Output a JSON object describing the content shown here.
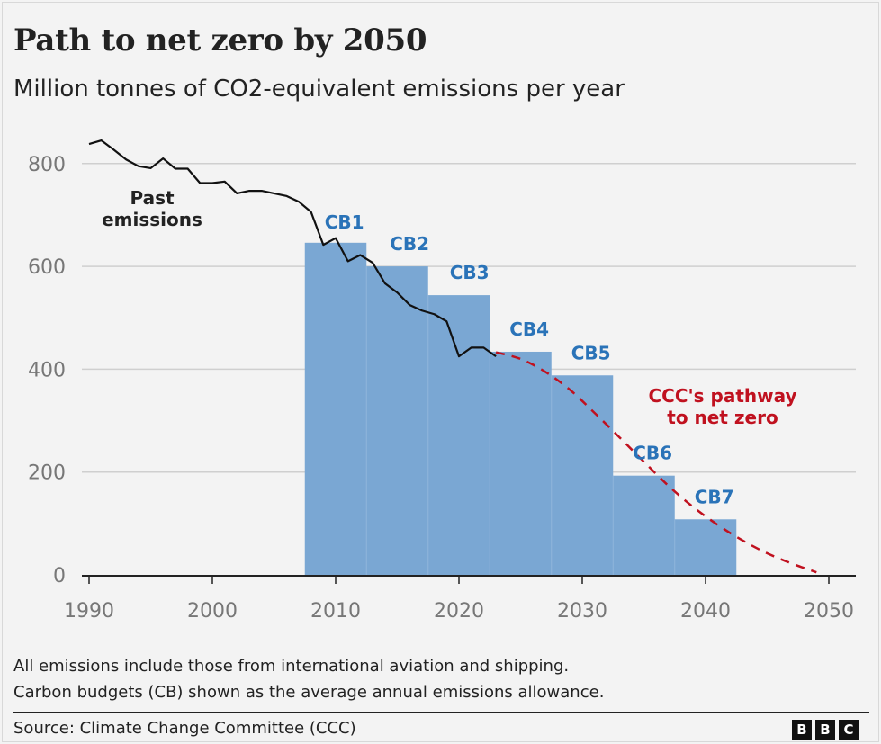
{
  "header": {
    "title": "Path to net zero by 2050",
    "subtitle": "Million tonnes of CO2-equivalent emissions per year"
  },
  "chart_data": {
    "type": "line",
    "title": "Path to net zero by 2050",
    "subtitle": "Million tonnes of CO2-equivalent emissions per year",
    "xlabel": "",
    "ylabel": "",
    "xlim": [
      1990,
      2050
    ],
    "ylim": [
      0,
      850
    ],
    "x_ticks": [
      1990,
      2000,
      2010,
      2020,
      2030,
      2040,
      2050
    ],
    "y_ticks": [
      0,
      200,
      400,
      600,
      800
    ],
    "grid": "horizontal",
    "series": [
      {
        "name": "Past emissions",
        "color": "#111111",
        "style": "solid",
        "points": [
          [
            1990,
            838
          ],
          [
            1991,
            845
          ],
          [
            1992,
            827
          ],
          [
            1993,
            808
          ],
          [
            1994,
            795
          ],
          [
            1995,
            791
          ],
          [
            1996,
            810
          ],
          [
            1997,
            790
          ],
          [
            1998,
            790
          ],
          [
            1999,
            762
          ],
          [
            2000,
            762
          ],
          [
            2001,
            765
          ],
          [
            2002,
            742
          ],
          [
            2003,
            747
          ],
          [
            2004,
            747
          ],
          [
            2005,
            742
          ],
          [
            2006,
            737
          ],
          [
            2007,
            726
          ],
          [
            2008,
            706
          ],
          [
            2009,
            642
          ],
          [
            2010,
            655
          ],
          [
            2011,
            610
          ],
          [
            2012,
            622
          ],
          [
            2013,
            607
          ],
          [
            2014,
            567
          ],
          [
            2015,
            549
          ],
          [
            2016,
            525
          ],
          [
            2017,
            514
          ],
          [
            2018,
            507
          ],
          [
            2019,
            493
          ],
          [
            2020,
            425
          ],
          [
            2021,
            442
          ],
          [
            2022,
            442
          ],
          [
            2023,
            425
          ]
        ]
      },
      {
        "name": "CCC's pathway to net zero",
        "color": "#c0111f",
        "style": "dashed",
        "points": [
          [
            2023,
            433
          ],
          [
            2025,
            420
          ],
          [
            2027,
            395
          ],
          [
            2029,
            360
          ],
          [
            2031,
            315
          ],
          [
            2033,
            268
          ],
          [
            2035,
            220
          ],
          [
            2037,
            173
          ],
          [
            2039,
            132
          ],
          [
            2041,
            97
          ],
          [
            2043,
            67
          ],
          [
            2045,
            42
          ],
          [
            2047,
            22
          ],
          [
            2049,
            5
          ]
        ]
      }
    ],
    "carbon_budgets": {
      "color": "#7aa7d3",
      "items": [
        {
          "label": "CB1",
          "start": 2008,
          "end": 2012,
          "value": 646
        },
        {
          "label": "CB2",
          "start": 2013,
          "end": 2017,
          "value": 600
        },
        {
          "label": "CB3",
          "start": 2018,
          "end": 2022,
          "value": 544
        },
        {
          "label": "CB4",
          "start": 2023,
          "end": 2027,
          "value": 434
        },
        {
          "label": "CB5",
          "start": 2028,
          "end": 2032,
          "value": 388
        },
        {
          "label": "CB6",
          "start": 2033,
          "end": 2037,
          "value": 193
        },
        {
          "label": "CB7",
          "start": 2038,
          "end": 2042,
          "value": 108
        }
      ]
    },
    "annotations": {
      "past_emissions": [
        "Past",
        "emissions"
      ],
      "pathway": [
        "CCC's pathway",
        "to net zero"
      ]
    }
  },
  "footer": {
    "note_line1": "All emissions include those from international aviation and shipping.",
    "note_line2": "Carbon budgets (CB) shown as the average annual emissions allowance.",
    "source": "Source: Climate Change Committee (CCC)",
    "logo_letters": [
      "B",
      "B",
      "C"
    ]
  }
}
